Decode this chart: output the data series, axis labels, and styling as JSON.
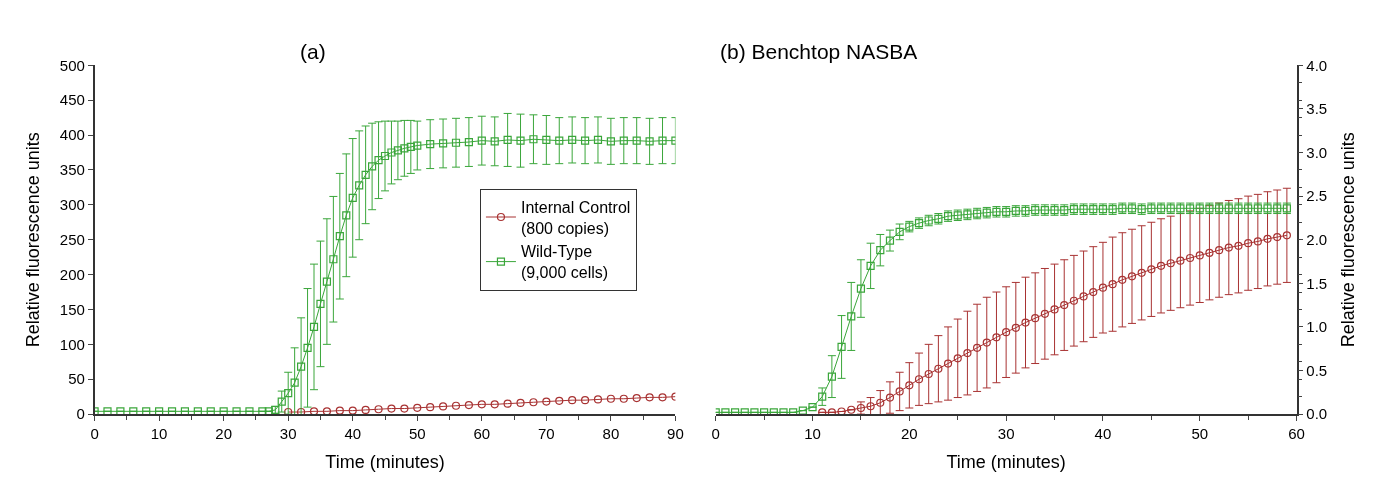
{
  "chart_data": [
    {
      "type": "line",
      "title": "(a)",
      "xlabel": "Time (minutes)",
      "ylabel": "Relative fluorescence units",
      "xlim": [
        0,
        90
      ],
      "xticks": [
        0,
        10,
        20,
        30,
        40,
        50,
        60,
        70,
        80,
        90
      ],
      "ylim": [
        0,
        500
      ],
      "yticks": [
        0,
        50,
        100,
        150,
        200,
        250,
        300,
        350,
        400,
        450,
        500
      ],
      "legend": "right",
      "line_style": "solid",
      "series": [
        {
          "name": "Internal Control\n(800 copies)",
          "color": "#a83232",
          "marker": "circle",
          "x": [
            30,
            32,
            34,
            36,
            38,
            40,
            42,
            44,
            46,
            48,
            50,
            52,
            54,
            56,
            58,
            60,
            62,
            64,
            66,
            68,
            70,
            72,
            74,
            76,
            78,
            80,
            82,
            84,
            86,
            88,
            90
          ],
          "values": [
            3,
            3,
            4,
            4,
            5,
            5,
            6,
            7,
            8,
            8,
            9,
            10,
            11,
            12,
            13,
            14,
            14,
            15,
            16,
            17,
            18,
            19,
            20,
            20,
            21,
            22,
            22,
            23,
            24,
            24,
            25
          ]
        },
        {
          "name": "Wild-Type\n(9,000 cells)",
          "color": "#3aa63a",
          "marker": "square",
          "x": [
            0,
            2,
            4,
            6,
            8,
            10,
            12,
            14,
            16,
            18,
            20,
            22,
            24,
            26,
            27,
            28,
            29,
            30,
            31,
            32,
            33,
            34,
            35,
            36,
            37,
            38,
            39,
            40,
            41,
            42,
            43,
            44,
            45,
            46,
            47,
            48,
            49,
            50,
            52,
            54,
            56,
            58,
            60,
            62,
            64,
            66,
            68,
            70,
            72,
            74,
            76,
            78,
            80,
            82,
            84,
            86,
            88,
            90
          ],
          "values": [
            4,
            4,
            4,
            4,
            4,
            4,
            4,
            4,
            4,
            4,
            4,
            4,
            4,
            4,
            4,
            6,
            18,
            30,
            45,
            68,
            95,
            125,
            158,
            190,
            222,
            255,
            285,
            310,
            328,
            343,
            355,
            364,
            370,
            375,
            378,
            381,
            383,
            385,
            387,
            388,
            389,
            390,
            392,
            391,
            393,
            392,
            394,
            393,
            392,
            393,
            392,
            393,
            391,
            392,
            392,
            391,
            392,
            392
          ],
          "errors": [
            null,
            null,
            null,
            null,
            null,
            null,
            null,
            null,
            null,
            null,
            null,
            null,
            null,
            null,
            null,
            5,
            15,
            30,
            50,
            70,
            85,
            90,
            90,
            90,
            90,
            90,
            88,
            85,
            78,
            70,
            62,
            55,
            50,
            45,
            42,
            40,
            38,
            35,
            35,
            35,
            35,
            35,
            35,
            35,
            38,
            38,
            35,
            35,
            33,
            33,
            33,
            33,
            33,
            33,
            33,
            33,
            33,
            33
          ]
        }
      ]
    },
    {
      "type": "line",
      "title": "(b) Benchtop NASBA",
      "xlabel": "Time (minutes)",
      "ylabel": "Relative fluorescence units",
      "xlim": [
        0,
        60
      ],
      "xticks": [
        0,
        10,
        20,
        30,
        40,
        50,
        60
      ],
      "ylim": [
        0,
        4
      ],
      "yticks": [
        {
          "value": 0,
          "label": "0.0"
        },
        0.5,
        {
          "value": 1,
          "label": "1.0"
        },
        1.5,
        {
          "value": 2,
          "label": "2.0"
        },
        2.5,
        {
          "value": 3,
          "label": "3.0"
        },
        3.5,
        {
          "value": 4,
          "label": "4.0"
        }
      ],
      "legend": false,
      "line_style": "solid",
      "series": [
        {
          "color": "#a83232",
          "marker": "circle",
          "x": [
            11,
            12,
            13,
            14,
            15,
            16,
            17,
            18,
            19,
            20,
            21,
            22,
            23,
            24,
            25,
            26,
            27,
            28,
            29,
            30,
            31,
            32,
            33,
            34,
            35,
            36,
            37,
            38,
            39,
            40,
            41,
            42,
            43,
            44,
            45,
            46,
            47,
            48,
            49,
            50,
            51,
            52,
            53,
            54,
            55,
            56,
            57,
            58,
            59
          ],
          "values": [
            0.02,
            0.02,
            0.03,
            0.05,
            0.07,
            0.09,
            0.13,
            0.19,
            0.26,
            0.33,
            0.4,
            0.46,
            0.52,
            0.58,
            0.64,
            0.7,
            0.76,
            0.82,
            0.88,
            0.94,
            0.99,
            1.05,
            1.1,
            1.15,
            1.2,
            1.25,
            1.3,
            1.35,
            1.4,
            1.45,
            1.49,
            1.54,
            1.58,
            1.62,
            1.66,
            1.7,
            1.73,
            1.76,
            1.79,
            1.82,
            1.85,
            1.88,
            1.91,
            1.93,
            1.96,
            1.98,
            2.01,
            2.03,
            2.05
          ],
          "errors": [
            null,
            null,
            null,
            null,
            0.07,
            0.1,
            0.14,
            0.18,
            0.22,
            0.26,
            0.3,
            0.34,
            0.38,
            0.42,
            0.45,
            0.48,
            0.5,
            0.52,
            0.52,
            0.52,
            0.52,
            0.52,
            0.52,
            0.52,
            0.52,
            0.52,
            0.52,
            0.52,
            0.52,
            0.52,
            0.54,
            0.54,
            0.54,
            0.54,
            0.54,
            0.54,
            0.54,
            0.54,
            0.54,
            0.54,
            0.54,
            0.54,
            0.54,
            0.54,
            0.54,
            0.54,
            0.54,
            0.54,
            0.54
          ]
        },
        {
          "color": "#3aa63a",
          "marker": "square",
          "x": [
            0,
            1,
            2,
            3,
            4,
            5,
            6,
            7,
            8,
            9,
            10,
            11,
            12,
            13,
            14,
            15,
            16,
            17,
            18,
            19,
            20,
            21,
            22,
            23,
            24,
            25,
            26,
            27,
            28,
            29,
            30,
            31,
            32,
            33,
            34,
            35,
            36,
            37,
            38,
            39,
            40,
            41,
            42,
            43,
            44,
            45,
            46,
            47,
            48,
            49,
            50,
            51,
            52,
            53,
            54,
            55,
            56,
            57,
            58,
            59
          ],
          "values": [
            0.02,
            0.02,
            0.02,
            0.02,
            0.02,
            0.02,
            0.02,
            0.02,
            0.02,
            0.04,
            0.08,
            0.2,
            0.43,
            0.77,
            1.12,
            1.44,
            1.7,
            1.88,
            1.99,
            2.09,
            2.15,
            2.19,
            2.22,
            2.24,
            2.27,
            2.28,
            2.29,
            2.3,
            2.31,
            2.32,
            2.32,
            2.33,
            2.33,
            2.34,
            2.34,
            2.34,
            2.34,
            2.35,
            2.35,
            2.35,
            2.35,
            2.35,
            2.36,
            2.36,
            2.35,
            2.36,
            2.36,
            2.36,
            2.36,
            2.36,
            2.36,
            2.36,
            2.36,
            2.36,
            2.36,
            2.36,
            2.36,
            2.36,
            2.36,
            2.36
          ],
          "errors": [
            null,
            null,
            null,
            null,
            null,
            null,
            null,
            null,
            null,
            null,
            null,
            0.1,
            0.24,
            0.36,
            0.39,
            0.33,
            0.26,
            0.18,
            0.12,
            0.09,
            0.06,
            0.06,
            0.06,
            0.06,
            0.06,
            0.06,
            0.06,
            0.06,
            0.06,
            0.06,
            0.06,
            0.06,
            0.06,
            0.06,
            0.06,
            0.06,
            0.06,
            0.06,
            0.06,
            0.06,
            0.06,
            0.06,
            0.06,
            0.06,
            0.06,
            0.06,
            0.06,
            0.06,
            0.06,
            0.06,
            0.06,
            0.06,
            0.06,
            0.06,
            0.06,
            0.06,
            0.06,
            0.06,
            0.06,
            0.06
          ]
        }
      ]
    }
  ]
}
